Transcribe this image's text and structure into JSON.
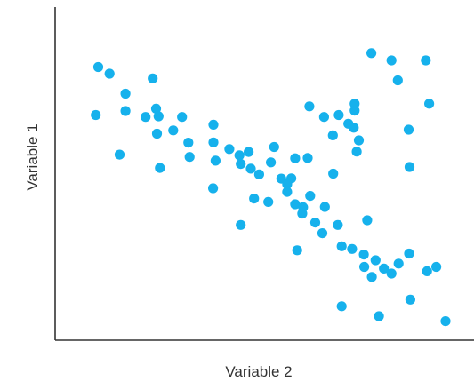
{
  "chart_data": {
    "type": "scatter",
    "xlabel": "Variable 2",
    "ylabel": "Variable 1",
    "title": "",
    "grid": false,
    "tick_labels": false,
    "xlim": [
      0,
      100
    ],
    "ylim": [
      0,
      100
    ],
    "point_color": "#16B1EC",
    "axis_color": "#333333",
    "points": [
      [
        10.3,
        82
      ],
      [
        13,
        80
      ],
      [
        16.8,
        74
      ],
      [
        9.7,
        67.6
      ],
      [
        16.8,
        68.8
      ],
      [
        21.6,
        67
      ],
      [
        23.3,
        78.6
      ],
      [
        24.1,
        69.5
      ],
      [
        24.7,
        67.2
      ],
      [
        24.3,
        62
      ],
      [
        28.2,
        63
      ],
      [
        30.3,
        67
      ],
      [
        31.8,
        59.3
      ],
      [
        15.4,
        55.7
      ],
      [
        25,
        51.7
      ],
      [
        32.1,
        55
      ],
      [
        37.8,
        64.7
      ],
      [
        37.8,
        59.4
      ],
      [
        38.3,
        53.9
      ],
      [
        41.6,
        57.4
      ],
      [
        44,
        55.5
      ],
      [
        46.2,
        56.5
      ],
      [
        46.7,
        51.5
      ],
      [
        48.7,
        49.8
      ],
      [
        51.5,
        53.4
      ],
      [
        52.3,
        58
      ],
      [
        44.3,
        52.9
      ],
      [
        37.7,
        45.6
      ],
      [
        54,
        48.5
      ],
      [
        56.4,
        48.6
      ],
      [
        57.3,
        54.6
      ],
      [
        60.3,
        54.7
      ],
      [
        55.4,
        46.8
      ],
      [
        55.4,
        44.5
      ],
      [
        47.5,
        42.5
      ],
      [
        50.9,
        41.5
      ],
      [
        57.3,
        40.8
      ],
      [
        59.2,
        39.9
      ],
      [
        62.1,
        35.3
      ],
      [
        59,
        38
      ],
      [
        60.9,
        43.3
      ],
      [
        64.4,
        40
      ],
      [
        44.3,
        34.6
      ],
      [
        57.8,
        27
      ],
      [
        63.8,
        32.1
      ],
      [
        67.5,
        34.6
      ],
      [
        60.7,
        70.2
      ],
      [
        64.2,
        67
      ],
      [
        66.3,
        61.5
      ],
      [
        67.7,
        67.6
      ],
      [
        70,
        65
      ],
      [
        71.5,
        68.9
      ],
      [
        71.3,
        63.8
      ],
      [
        71.5,
        71
      ],
      [
        72,
        56.6
      ],
      [
        66.4,
        50
      ],
      [
        72.5,
        60
      ],
      [
        74.5,
        36
      ],
      [
        73.8,
        22
      ],
      [
        75.5,
        86.2
      ],
      [
        80.3,
        84
      ],
      [
        81.8,
        78
      ],
      [
        88.5,
        84
      ],
      [
        89.3,
        71
      ],
      [
        84.4,
        63.2
      ],
      [
        84.6,
        52
      ],
      [
        68.4,
        28.2
      ],
      [
        70.9,
        27.4
      ],
      [
        73.7,
        25.7
      ],
      [
        76.5,
        24
      ],
      [
        78.5,
        21.5
      ],
      [
        82,
        23
      ],
      [
        84.5,
        26
      ],
      [
        91,
        22
      ],
      [
        75.6,
        19
      ],
      [
        80.3,
        20
      ],
      [
        68.4,
        10.2
      ],
      [
        77.3,
        7.2
      ],
      [
        84.8,
        12.2
      ],
      [
        93.2,
        5.7
      ],
      [
        88.8,
        20.7
      ]
    ]
  }
}
